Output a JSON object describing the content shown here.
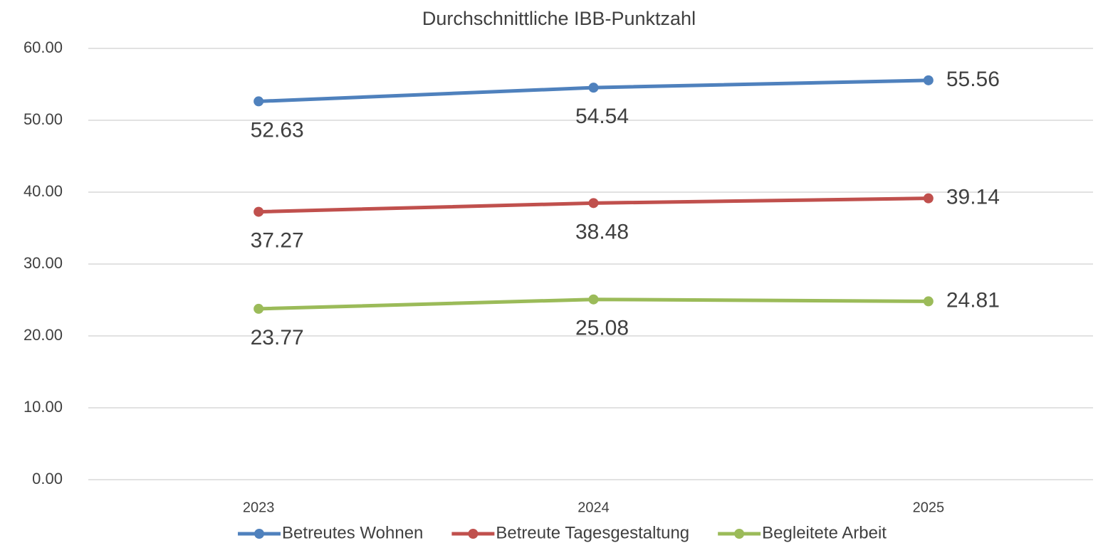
{
  "chart_data": {
    "type": "line",
    "title": "Durchschnittliche IBB-Punktzahl",
    "categories": [
      "2023",
      "2024",
      "2025"
    ],
    "series": [
      {
        "name": "Betreutes Wohnen",
        "color": "#4f81bd",
        "values": [
          52.63,
          54.54,
          55.56
        ]
      },
      {
        "name": "Betreute Tagesgestaltung",
        "color": "#c0504d",
        "values": [
          37.27,
          38.48,
          39.14
        ]
      },
      {
        "name": "Begleitete Arbeit",
        "color": "#9bbb59",
        "values": [
          23.77,
          25.08,
          24.81
        ]
      }
    ],
    "ylim": [
      0,
      60
    ],
    "yticks": [
      {
        "value": 0,
        "label": "0.00"
      },
      {
        "value": 10,
        "label": "10.00"
      },
      {
        "value": 20,
        "label": "20.00"
      },
      {
        "value": 30,
        "label": "30.00"
      },
      {
        "value": 40,
        "label": "40.00"
      },
      {
        "value": 50,
        "label": "50.00"
      },
      {
        "value": 60,
        "label": "60.00"
      }
    ],
    "grid": true,
    "legend": "bottom"
  }
}
